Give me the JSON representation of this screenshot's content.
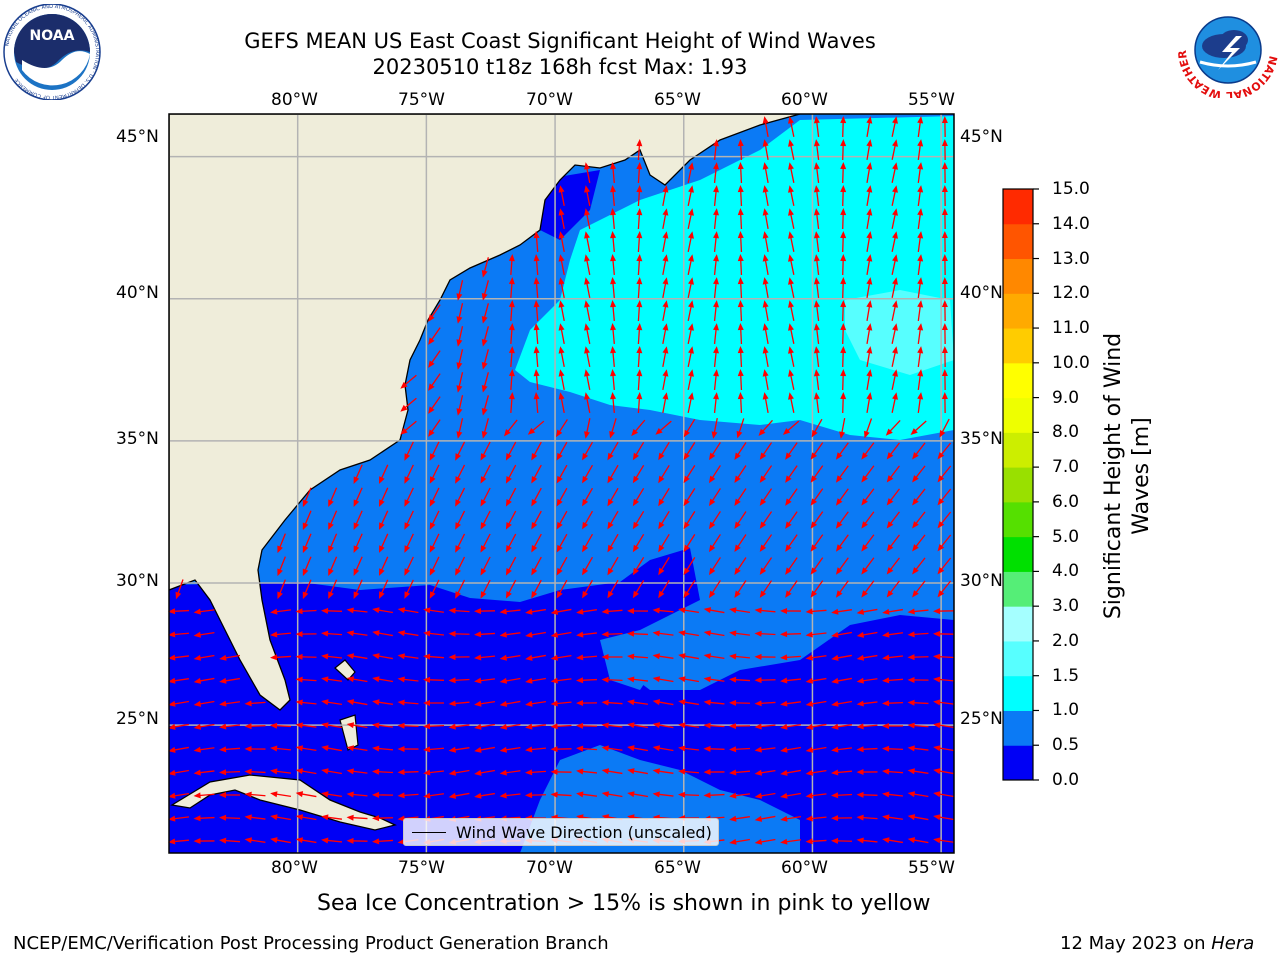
{
  "title": {
    "line1": "GEFS MEAN US East Coast Significant Height of Wind Waves",
    "line2": "20230510 t18z 168h fcst   Max: 1.93"
  },
  "axes": {
    "lon_labels": [
      "80°W",
      "75°W",
      "70°W",
      "65°W",
      "60°W",
      "55°W"
    ],
    "lat_labels": [
      "45°N",
      "40°N",
      "35°N",
      "30°N",
      "25°N"
    ]
  },
  "legend": {
    "label": "Wind Wave Direction (unscaled)"
  },
  "colorbar": {
    "label_line1": "Significant Height of Wind",
    "label_line2": "Waves [m]",
    "ticks": [
      "0.0",
      "0.5",
      "1.0",
      "1.5",
      "2.0",
      "3.0",
      "4.0",
      "5.0",
      "6.0",
      "7.0",
      "8.0",
      "9.0",
      "10.0",
      "11.0",
      "12.0",
      "13.0",
      "14.0",
      "15.0"
    ],
    "colors": [
      "#0000f5",
      "#0b7af5",
      "#00ffff",
      "#57ffff",
      "#a5ffff",
      "#55ee77",
      "#00e000",
      "#55e000",
      "#99e000",
      "#ccee00",
      "#eeff00",
      "#ffff00",
      "#ffcc00",
      "#ffaa00",
      "#ff8800",
      "#ff5500",
      "#ff2a00",
      "#ff0000"
    ]
  },
  "caption": "Sea Ice Concentration > 15% is shown in pink to yellow",
  "footer": {
    "left": "NCEP/EMC/Verification Post Processing Product Generation Branch",
    "right_date": "12 May 2023 on",
    "right_machine": "Hera"
  },
  "logos": {
    "noaa_text": "NOAA",
    "noaa_ring": "NATIONAL OCEANIC AND ATMOSPHERIC ADMINISTRATION · U.S. DEPARTMENT OF COMMERCE",
    "nws_ring": "NATIONAL WEATHER SERVICE"
  },
  "map": {
    "land_color": "#efedda",
    "grid_color": "#b3b3b3",
    "arrow_color": "#ff0000",
    "lon_range": [
      -85,
      -54.5
    ],
    "lat_range": [
      20.5,
      46.5
    ]
  }
}
